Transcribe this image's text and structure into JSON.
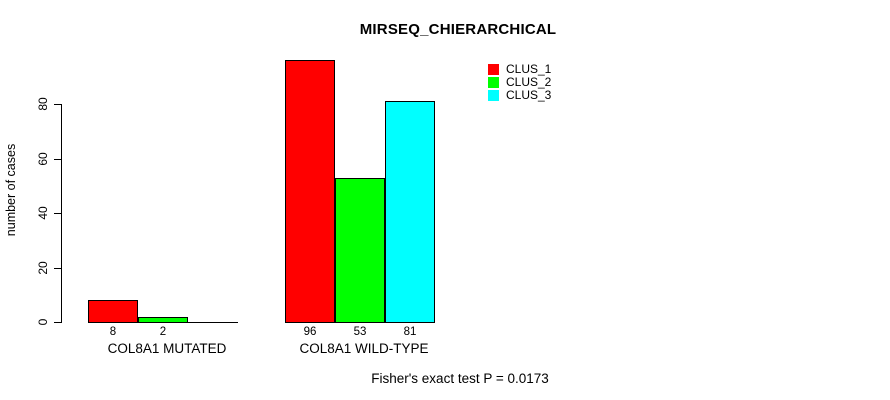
{
  "chart_data": {
    "type": "bar",
    "title": "MIRSEQ_CHIERARCHICAL",
    "ylabel": "number of cases",
    "xlabel": "",
    "categories": [
      "COL8A1 MUTATED",
      "COL8A1 WILD-TYPE"
    ],
    "series": [
      {
        "name": "CLUS_1",
        "color": "#ff0000",
        "values": [
          8,
          96
        ]
      },
      {
        "name": "CLUS_2",
        "color": "#00ff00",
        "values": [
          2,
          53
        ]
      },
      {
        "name": "CLUS_3",
        "color": "#00ffff",
        "values": [
          0,
          81
        ]
      }
    ],
    "bar_value_labels": [
      [
        "8",
        "2",
        ""
      ],
      [
        "96",
        "53",
        "81"
      ]
    ],
    "yticks": [
      "0",
      "20",
      "40",
      "60",
      "80"
    ],
    "ytick_values": [
      0,
      20,
      40,
      60,
      80
    ],
    "ylim": [
      0,
      96
    ],
    "grid": false,
    "legend_position": "top-right",
    "annotation": "Fisher's exact test P = 0.0173",
    "axis_color": "#000000",
    "background_color": "#ffffff"
  }
}
